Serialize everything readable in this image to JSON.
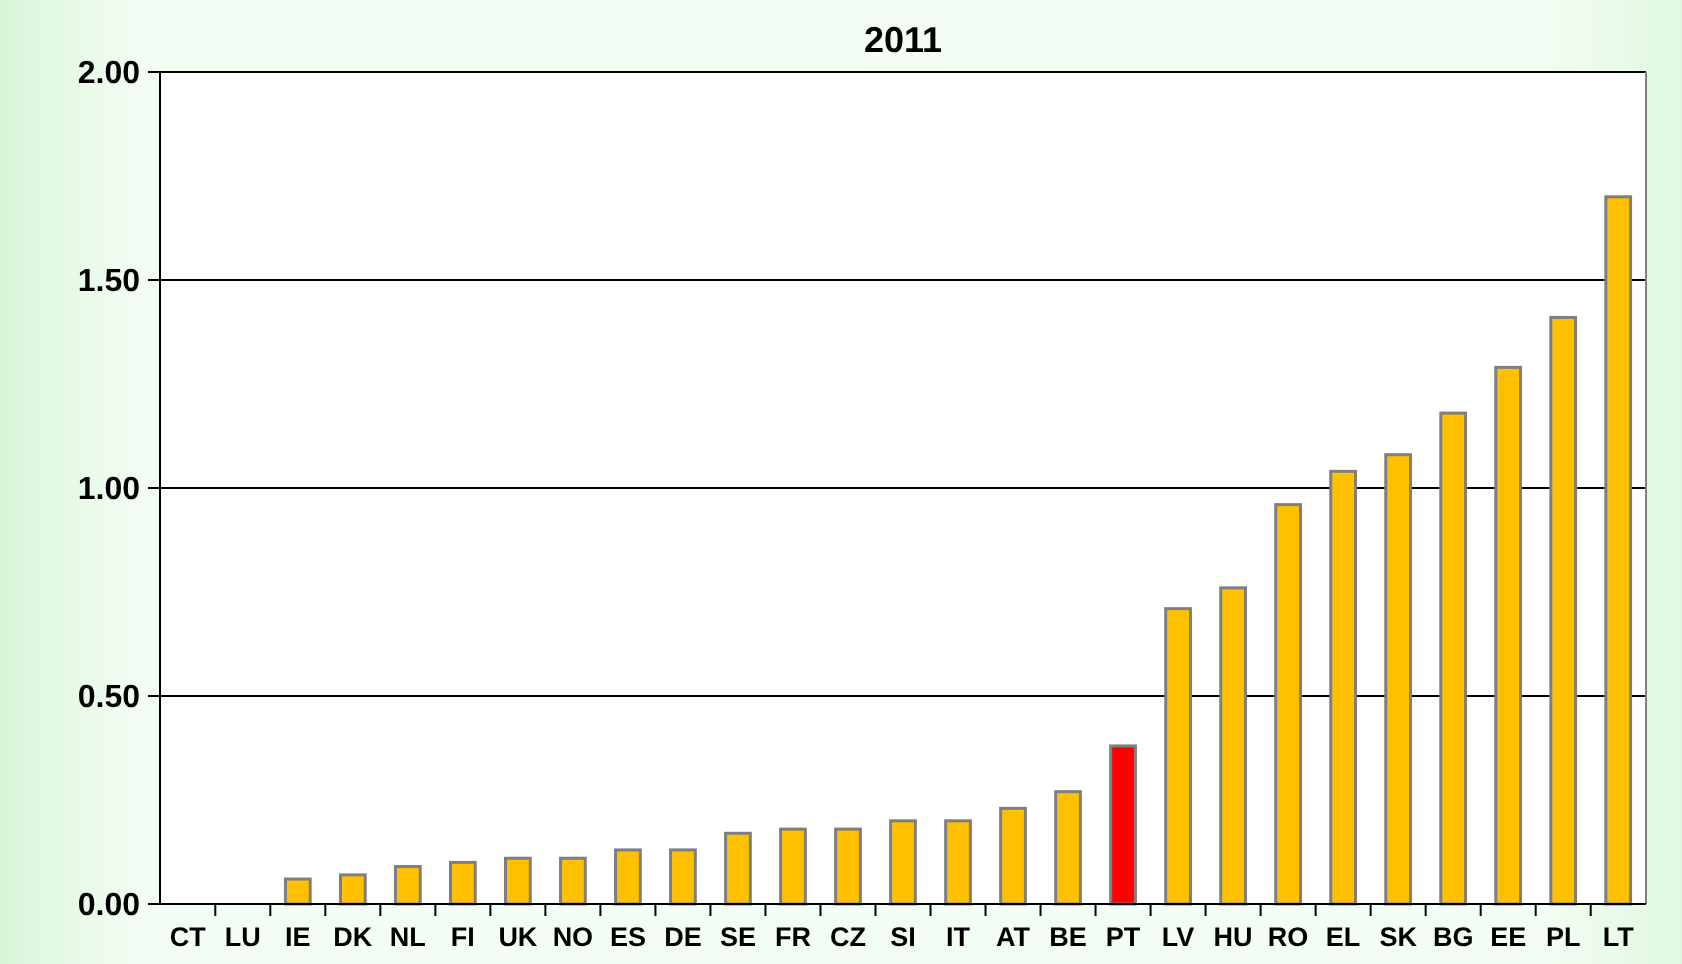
{
  "chart_data": {
    "type": "bar",
    "title": "2011",
    "categories": [
      "CT",
      "LU",
      "IE",
      "DK",
      "NL",
      "FI",
      "UK",
      "NO",
      "ES",
      "DE",
      "SE",
      "FR",
      "CZ",
      "SI",
      "IT",
      "AT",
      "BE",
      "PT",
      "LV",
      "HU",
      "RO",
      "EL",
      "SK",
      "BG",
      "EE",
      "PL",
      "LT"
    ],
    "values": [
      null,
      null,
      0.06,
      0.07,
      0.09,
      0.1,
      0.11,
      0.11,
      0.13,
      0.13,
      0.17,
      0.18,
      0.18,
      0.2,
      0.2,
      0.23,
      0.27,
      0.38,
      0.71,
      0.76,
      0.96,
      1.04,
      1.08,
      1.18,
      1.29,
      1.41,
      1.7
    ],
    "colors": [
      null,
      null,
      "#ffc000",
      "#ffc000",
      "#ffc000",
      "#ffc000",
      "#ffc000",
      "#ffc000",
      "#ffc000",
      "#ffc000",
      "#ffc000",
      "#ffc000",
      "#ffc000",
      "#ffc000",
      "#ffc000",
      "#ffc000",
      "#ffc000",
      "#ff0000",
      "#ffc000",
      "#ffc000",
      "#ffc000",
      "#ffc000",
      "#ffc000",
      "#ffc000",
      "#ffc000",
      "#ffc000",
      "#ffc000"
    ],
    "ylim": [
      0,
      2
    ],
    "yticks": [
      {
        "value": 0,
        "label": "0.00"
      },
      {
        "value": 0.5,
        "label": "0.50"
      },
      {
        "value": 1,
        "label": "1.00"
      },
      {
        "value": 1.5,
        "label": "1.50"
      },
      {
        "value": 2,
        "label": "2.00"
      }
    ],
    "grid": "y"
  }
}
